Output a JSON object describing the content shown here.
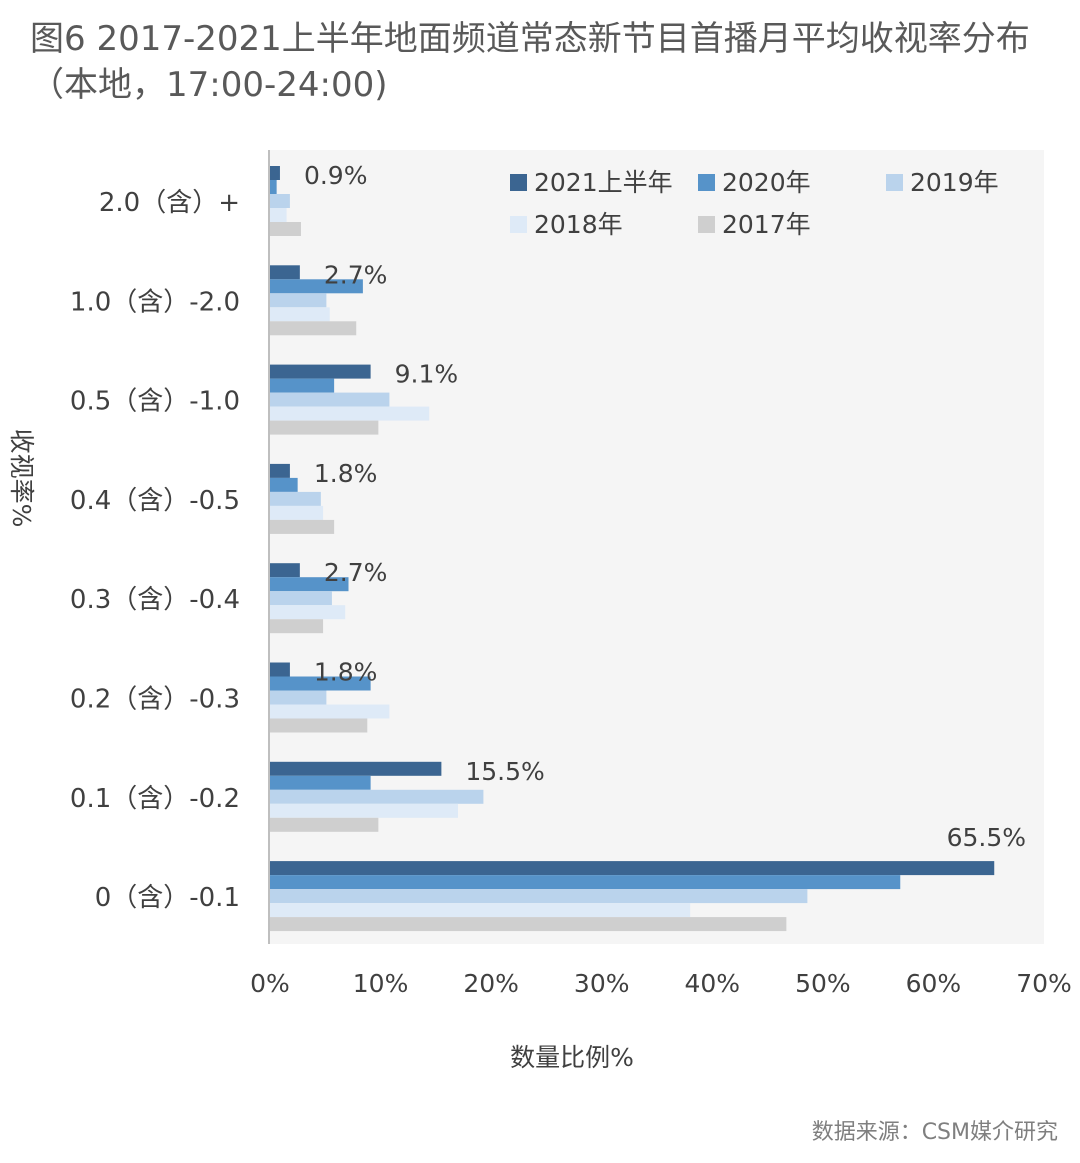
{
  "title": "图6  2017-2021上半年地面频道常态新节目首播月平均收视率分布（本地，17:00-24:00)",
  "source": "数据来源：CSM媒介研究",
  "colors": {
    "2021上半年": "#3b6591",
    "2020年": "#5693c9",
    "2019年": "#bad3ec",
    "2018年": "#deeaf7",
    "2017年": "#cfcfcf",
    "plot_bg": "#f5f5f5",
    "axis": "#bfbfbf"
  },
  "chart_data": {
    "type": "bar",
    "orientation": "horizontal",
    "xlabel": "数量比例%",
    "ylabel": "收视率%",
    "xlim": [
      0,
      70
    ],
    "x_ticks": [
      "0%",
      "10%",
      "20%",
      "30%",
      "40%",
      "50%",
      "60%",
      "70%"
    ],
    "legend_position": "top-right",
    "grid": false,
    "categories": [
      "2.0（含）+",
      "1.0（含）-2.0",
      "0.5（含）-1.0",
      "0.4（含）-0.5",
      "0.3（含）-0.4",
      "0.2（含）-0.3",
      "0.1（含）-0.2",
      "0（含）-0.1"
    ],
    "series": [
      {
        "name": "2021上半年",
        "values": [
          0.9,
          2.7,
          9.1,
          1.8,
          2.7,
          1.8,
          15.5,
          65.5
        ]
      },
      {
        "name": "2020年",
        "values": [
          0.6,
          8.4,
          5.8,
          2.5,
          7.1,
          9.1,
          9.1,
          57.0
        ]
      },
      {
        "name": "2019年",
        "values": null
      },
      {
        "name": "2018年",
        "values": null
      },
      {
        "name": "2017年",
        "values": null
      }
    ],
    "data_labels": [
      "0.9%",
      "2.7%",
      "9.1%",
      "1.8%",
      "2.7%",
      "1.8%",
      "15.5%",
      "65.5%"
    ]
  }
}
